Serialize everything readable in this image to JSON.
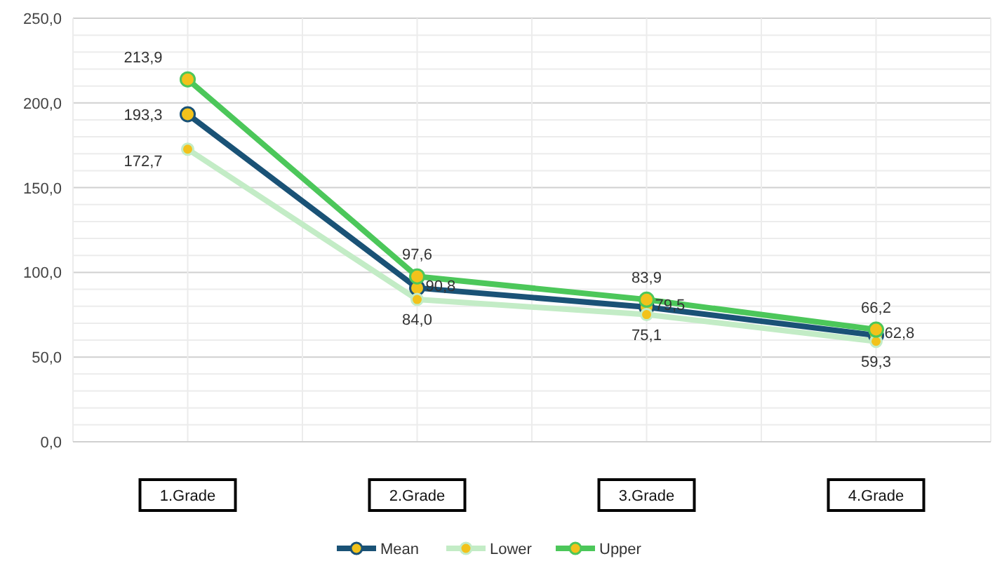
{
  "chart_data": {
    "type": "line",
    "categories": [
      "1.Grade",
      "2.Grade",
      "3.Grade",
      "4.Grade"
    ],
    "series": [
      {
        "name": "Mean",
        "color": "#1a5276",
        "values": [
          193.3,
          90.8,
          79.5,
          62.8
        ],
        "value_labels": [
          "193,3",
          "90,8",
          "79,5",
          "62,8"
        ]
      },
      {
        "name": "Lower",
        "color": "#c3ecc6",
        "values": [
          172.7,
          84.0,
          75.1,
          59.3
        ],
        "value_labels": [
          "172,7",
          "84,0",
          "75,1",
          "59,3"
        ]
      },
      {
        "name": "Upper",
        "color": "#4cc75a",
        "values": [
          213.9,
          97.6,
          83.9,
          66.2
        ],
        "value_labels": [
          "213,9",
          "97,6",
          "83,9",
          "66,2"
        ]
      }
    ],
    "ylim": [
      0,
      250
    ],
    "yticks": [
      {
        "value": 0,
        "label": "0,0"
      },
      {
        "value": 10,
        "label": null
      },
      {
        "value": 20,
        "label": null
      },
      {
        "value": 30,
        "label": null
      },
      {
        "value": 40,
        "label": null
      },
      {
        "value": 50,
        "label": "50,0"
      },
      {
        "value": 60,
        "label": null
      },
      {
        "value": 70,
        "label": null
      },
      {
        "value": 80,
        "label": null
      },
      {
        "value": 90,
        "label": null
      },
      {
        "value": 100,
        "label": "100,0"
      },
      {
        "value": 110,
        "label": null
      },
      {
        "value": 120,
        "label": null
      },
      {
        "value": 130,
        "label": null
      },
      {
        "value": 140,
        "label": null
      },
      {
        "value": 150,
        "label": "150,0"
      },
      {
        "value": 160,
        "label": null
      },
      {
        "value": 170,
        "label": null
      },
      {
        "value": 180,
        "label": null
      },
      {
        "value": 190,
        "label": null
      },
      {
        "value": 200,
        "label": "200,0"
      },
      {
        "value": 210,
        "label": null
      },
      {
        "value": 220,
        "label": null
      },
      {
        "value": 230,
        "label": null
      },
      {
        "value": 240,
        "label": null
      },
      {
        "value": 250,
        "label": "250,0"
      }
    ],
    "grid": true,
    "legend": "bottom",
    "marker": "circle",
    "line_style": "solid"
  }
}
